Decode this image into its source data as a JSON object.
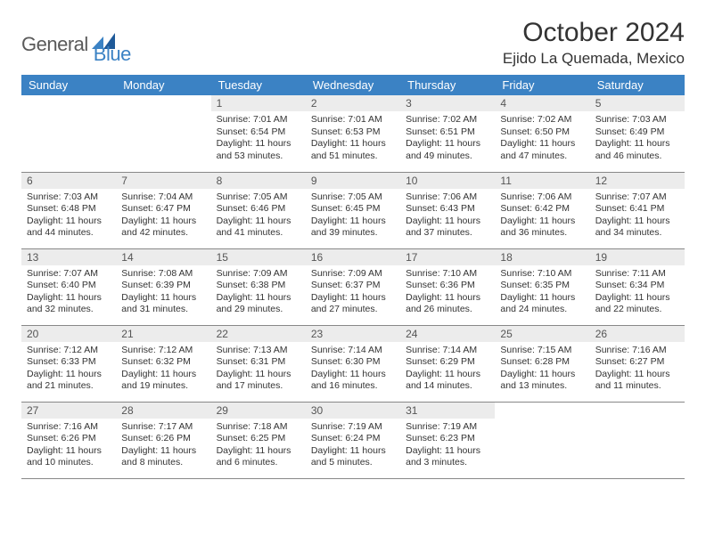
{
  "logo": {
    "part1": "General",
    "part2": "Blue"
  },
  "title": "October 2024",
  "location": "Ejido La Quemada, Mexico",
  "colors": {
    "header_bg": "#3b82c4",
    "header_text": "#ffffff",
    "daynum_bg": "#ececec",
    "daynum_text": "#555555",
    "body_text": "#333333",
    "rule": "#888888",
    "logo_gray": "#5a5a5a",
    "logo_blue": "#3b82c4"
  },
  "weekdays": [
    "Sunday",
    "Monday",
    "Tuesday",
    "Wednesday",
    "Thursday",
    "Friday",
    "Saturday"
  ],
  "weeks": [
    [
      {
        "n": "",
        "sr": "",
        "ss": "",
        "dl": "",
        "empty": true
      },
      {
        "n": "",
        "sr": "",
        "ss": "",
        "dl": "",
        "empty": true
      },
      {
        "n": "1",
        "sr": "Sunrise: 7:01 AM",
        "ss": "Sunset: 6:54 PM",
        "dl": "Daylight: 11 hours and 53 minutes."
      },
      {
        "n": "2",
        "sr": "Sunrise: 7:01 AM",
        "ss": "Sunset: 6:53 PM",
        "dl": "Daylight: 11 hours and 51 minutes."
      },
      {
        "n": "3",
        "sr": "Sunrise: 7:02 AM",
        "ss": "Sunset: 6:51 PM",
        "dl": "Daylight: 11 hours and 49 minutes."
      },
      {
        "n": "4",
        "sr": "Sunrise: 7:02 AM",
        "ss": "Sunset: 6:50 PM",
        "dl": "Daylight: 11 hours and 47 minutes."
      },
      {
        "n": "5",
        "sr": "Sunrise: 7:03 AM",
        "ss": "Sunset: 6:49 PM",
        "dl": "Daylight: 11 hours and 46 minutes."
      }
    ],
    [
      {
        "n": "6",
        "sr": "Sunrise: 7:03 AM",
        "ss": "Sunset: 6:48 PM",
        "dl": "Daylight: 11 hours and 44 minutes."
      },
      {
        "n": "7",
        "sr": "Sunrise: 7:04 AM",
        "ss": "Sunset: 6:47 PM",
        "dl": "Daylight: 11 hours and 42 minutes."
      },
      {
        "n": "8",
        "sr": "Sunrise: 7:05 AM",
        "ss": "Sunset: 6:46 PM",
        "dl": "Daylight: 11 hours and 41 minutes."
      },
      {
        "n": "9",
        "sr": "Sunrise: 7:05 AM",
        "ss": "Sunset: 6:45 PM",
        "dl": "Daylight: 11 hours and 39 minutes."
      },
      {
        "n": "10",
        "sr": "Sunrise: 7:06 AM",
        "ss": "Sunset: 6:43 PM",
        "dl": "Daylight: 11 hours and 37 minutes."
      },
      {
        "n": "11",
        "sr": "Sunrise: 7:06 AM",
        "ss": "Sunset: 6:42 PM",
        "dl": "Daylight: 11 hours and 36 minutes."
      },
      {
        "n": "12",
        "sr": "Sunrise: 7:07 AM",
        "ss": "Sunset: 6:41 PM",
        "dl": "Daylight: 11 hours and 34 minutes."
      }
    ],
    [
      {
        "n": "13",
        "sr": "Sunrise: 7:07 AM",
        "ss": "Sunset: 6:40 PM",
        "dl": "Daylight: 11 hours and 32 minutes."
      },
      {
        "n": "14",
        "sr": "Sunrise: 7:08 AM",
        "ss": "Sunset: 6:39 PM",
        "dl": "Daylight: 11 hours and 31 minutes."
      },
      {
        "n": "15",
        "sr": "Sunrise: 7:09 AM",
        "ss": "Sunset: 6:38 PM",
        "dl": "Daylight: 11 hours and 29 minutes."
      },
      {
        "n": "16",
        "sr": "Sunrise: 7:09 AM",
        "ss": "Sunset: 6:37 PM",
        "dl": "Daylight: 11 hours and 27 minutes."
      },
      {
        "n": "17",
        "sr": "Sunrise: 7:10 AM",
        "ss": "Sunset: 6:36 PM",
        "dl": "Daylight: 11 hours and 26 minutes."
      },
      {
        "n": "18",
        "sr": "Sunrise: 7:10 AM",
        "ss": "Sunset: 6:35 PM",
        "dl": "Daylight: 11 hours and 24 minutes."
      },
      {
        "n": "19",
        "sr": "Sunrise: 7:11 AM",
        "ss": "Sunset: 6:34 PM",
        "dl": "Daylight: 11 hours and 22 minutes."
      }
    ],
    [
      {
        "n": "20",
        "sr": "Sunrise: 7:12 AM",
        "ss": "Sunset: 6:33 PM",
        "dl": "Daylight: 11 hours and 21 minutes."
      },
      {
        "n": "21",
        "sr": "Sunrise: 7:12 AM",
        "ss": "Sunset: 6:32 PM",
        "dl": "Daylight: 11 hours and 19 minutes."
      },
      {
        "n": "22",
        "sr": "Sunrise: 7:13 AM",
        "ss": "Sunset: 6:31 PM",
        "dl": "Daylight: 11 hours and 17 minutes."
      },
      {
        "n": "23",
        "sr": "Sunrise: 7:14 AM",
        "ss": "Sunset: 6:30 PM",
        "dl": "Daylight: 11 hours and 16 minutes."
      },
      {
        "n": "24",
        "sr": "Sunrise: 7:14 AM",
        "ss": "Sunset: 6:29 PM",
        "dl": "Daylight: 11 hours and 14 minutes."
      },
      {
        "n": "25",
        "sr": "Sunrise: 7:15 AM",
        "ss": "Sunset: 6:28 PM",
        "dl": "Daylight: 11 hours and 13 minutes."
      },
      {
        "n": "26",
        "sr": "Sunrise: 7:16 AM",
        "ss": "Sunset: 6:27 PM",
        "dl": "Daylight: 11 hours and 11 minutes."
      }
    ],
    [
      {
        "n": "27",
        "sr": "Sunrise: 7:16 AM",
        "ss": "Sunset: 6:26 PM",
        "dl": "Daylight: 11 hours and 10 minutes."
      },
      {
        "n": "28",
        "sr": "Sunrise: 7:17 AM",
        "ss": "Sunset: 6:26 PM",
        "dl": "Daylight: 11 hours and 8 minutes."
      },
      {
        "n": "29",
        "sr": "Sunrise: 7:18 AM",
        "ss": "Sunset: 6:25 PM",
        "dl": "Daylight: 11 hours and 6 minutes."
      },
      {
        "n": "30",
        "sr": "Sunrise: 7:19 AM",
        "ss": "Sunset: 6:24 PM",
        "dl": "Daylight: 11 hours and 5 minutes."
      },
      {
        "n": "31",
        "sr": "Sunrise: 7:19 AM",
        "ss": "Sunset: 6:23 PM",
        "dl": "Daylight: 11 hours and 3 minutes."
      },
      {
        "n": "",
        "sr": "",
        "ss": "",
        "dl": "",
        "empty": true
      },
      {
        "n": "",
        "sr": "",
        "ss": "",
        "dl": "",
        "empty": true
      }
    ]
  ]
}
